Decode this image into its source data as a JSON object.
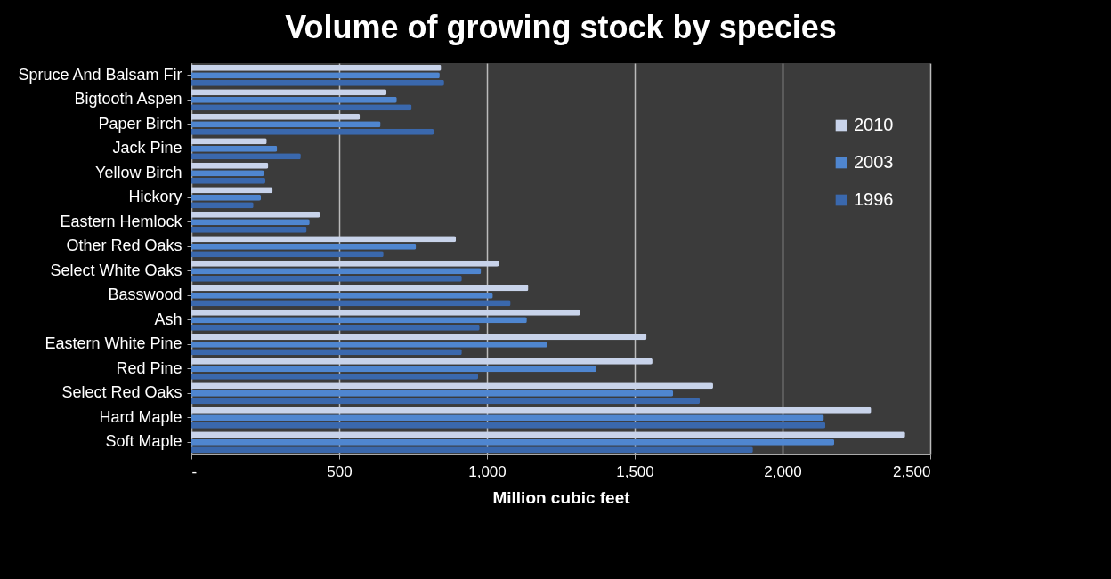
{
  "chart_data": {
    "type": "bar",
    "orientation": "horizontal",
    "title": "Volume of growing stock by species",
    "xlabel": "Million cubic feet",
    "categories": [
      "Spruce And Balsam Fir",
      "Bigtooth Aspen",
      "Paper Birch",
      "Jack Pine",
      "Yellow Birch",
      "Hickory",
      "Eastern Hemlock",
      "Other Red Oaks",
      "Select White Oaks",
      "Basswood",
      "Ash",
      "Eastern White Pine",
      "Red Pine",
      "Select Red Oaks",
      "Hard Maple",
      "Soft Maple"
    ],
    "series": [
      {
        "name": "2010",
        "color": "#c8d3ea",
        "values": [
          845,
          660,
          570,
          255,
          260,
          275,
          435,
          895,
          1040,
          1140,
          1315,
          1540,
          1560,
          1765,
          2300,
          2415
        ]
      },
      {
        "name": "2003",
        "color": "#4f86d0",
        "values": [
          840,
          695,
          640,
          290,
          245,
          235,
          400,
          760,
          980,
          1020,
          1135,
          1205,
          1370,
          1630,
          2140,
          2175
        ]
      },
      {
        "name": "1996",
        "color": "#3a68ad",
        "values": [
          855,
          745,
          820,
          370,
          250,
          210,
          390,
          650,
          915,
          1080,
          975,
          915,
          970,
          1720,
          2145,
          1900
        ]
      }
    ],
    "xlim": [
      0,
      2500
    ],
    "xticks": [
      {
        "value": 0,
        "label": "-"
      },
      {
        "value": 500,
        "label": "500"
      },
      {
        "value": 1000,
        "label": "1,000"
      },
      {
        "value": 1500,
        "label": "1,500"
      },
      {
        "value": 2000,
        "label": "2,000"
      },
      {
        "value": 2500,
        "label": "2,500"
      }
    ],
    "grid": "x",
    "legend": "top right"
  }
}
